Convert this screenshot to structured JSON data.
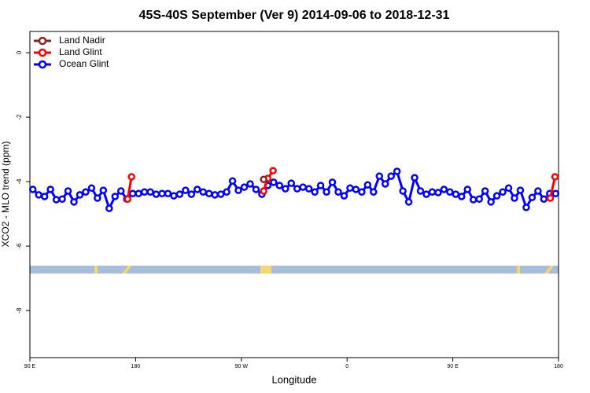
{
  "chart_data": {
    "type": "line",
    "title": "45S-40S September (Ver 9)   2014-09-06 to 2018-12-31",
    "x_label": "Longitude",
    "y_label": "XCO2 - MLO trend (ppm)",
    "xlim": [
      90,
      540
    ],
    "xticks": [
      {
        "value": 90,
        "label": "90 E"
      },
      180,
      {
        "value": 270,
        "label": "90 W"
      },
      {
        "value": 360,
        "label": "0"
      },
      {
        "value": 450,
        "label": "90 E"
      },
      {
        "value": 540,
        "label": "180"
      }
    ],
    "ylim": [
      -9.46,
      0.66
    ],
    "yticks": [
      0,
      -2,
      -4,
      -6,
      -8
    ],
    "legend": "top-left",
    "series": [
      {
        "name": "Ocean Glint",
        "color": "#0000ff",
        "x": [
          92.5,
          97.5,
          102.5,
          107.5,
          112.5,
          117.5,
          122.5,
          127.5,
          132.5,
          137.5,
          142.5,
          147.5,
          152.5,
          157.5,
          162.5,
          167.5,
          172.5,
          177.5,
          182.5,
          187.5,
          192.5,
          197.5,
          202.5,
          207.5,
          212.5,
          217.5,
          222.5,
          227.5,
          232.5,
          237.5,
          242.5,
          247.5,
          252.5,
          257.5,
          262.5,
          267.5,
          272.5,
          277.5,
          282.5,
          287.5,
          292.5,
          297.5,
          302.5,
          307.5,
          312.5,
          317.5,
          322.5,
          327.5,
          332.5,
          337.5,
          342.5,
          347.5,
          352.5,
          357.5,
          362.5,
          367.5,
          372.5,
          377.5,
          382.5,
          387.5,
          392.5,
          397.5,
          402.5,
          407.5,
          412.5,
          417.5,
          422.5,
          427.5,
          432.5,
          437.5,
          442.5,
          447.5,
          452.5,
          457.5,
          462.5,
          467.5,
          472.5,
          477.5,
          482.5,
          487.5,
          492.5,
          497.5,
          502.5,
          507.5,
          512.5,
          517.5,
          522.5,
          527.5,
          532.5,
          537.5
        ],
        "values": [
          -4.24,
          -4.41,
          -4.46,
          -4.24,
          -4.56,
          -4.54,
          -4.29,
          -4.63,
          -4.41,
          -4.32,
          -4.2,
          -4.51,
          -4.27,
          -4.83,
          -4.46,
          -4.29,
          -4.54,
          -4.37,
          -4.37,
          -4.32,
          -4.32,
          -4.39,
          -4.37,
          -4.37,
          -4.44,
          -4.39,
          -4.27,
          -4.39,
          -4.24,
          -4.32,
          -4.37,
          -4.41,
          -4.39,
          -4.32,
          -3.98,
          -4.27,
          -4.17,
          -4.07,
          -4.24,
          -4.39,
          -4.12,
          -4.02,
          -4.12,
          -4.22,
          -4.05,
          -4.22,
          -4.17,
          -4.22,
          -4.32,
          -4.12,
          -4.32,
          -4.02,
          -4.32,
          -4.44,
          -4.2,
          -4.24,
          -4.32,
          -4.1,
          -4.32,
          -3.83,
          -4.07,
          -3.83,
          -3.68,
          -4.29,
          -4.63,
          -3.88,
          -4.29,
          -4.39,
          -4.32,
          -4.34,
          -4.24,
          -4.32,
          -4.39,
          -4.46,
          -4.24,
          -4.56,
          -4.54,
          -4.29,
          -4.63,
          -4.44,
          -4.32,
          -4.2,
          -4.51,
          -4.27,
          -4.8,
          -4.49,
          -4.29,
          -4.54,
          -4.37,
          -4.37
        ]
      },
      {
        "name": "Land Glint",
        "color": "#ff0000",
        "x": [
          173.2,
          176.5,
          null,
          289,
          292.5,
          297,
          null,
          533,
          537
        ],
        "values": [
          -4.54,
          -3.85,
          null,
          -4.29,
          -3.9,
          -3.66,
          null,
          -4.51,
          -3.85
        ]
      },
      {
        "name": "Land Nadir",
        "color": "#8b2323",
        "x": [
          289
        ],
        "values": [
          -3.93
        ]
      }
    ]
  }
}
